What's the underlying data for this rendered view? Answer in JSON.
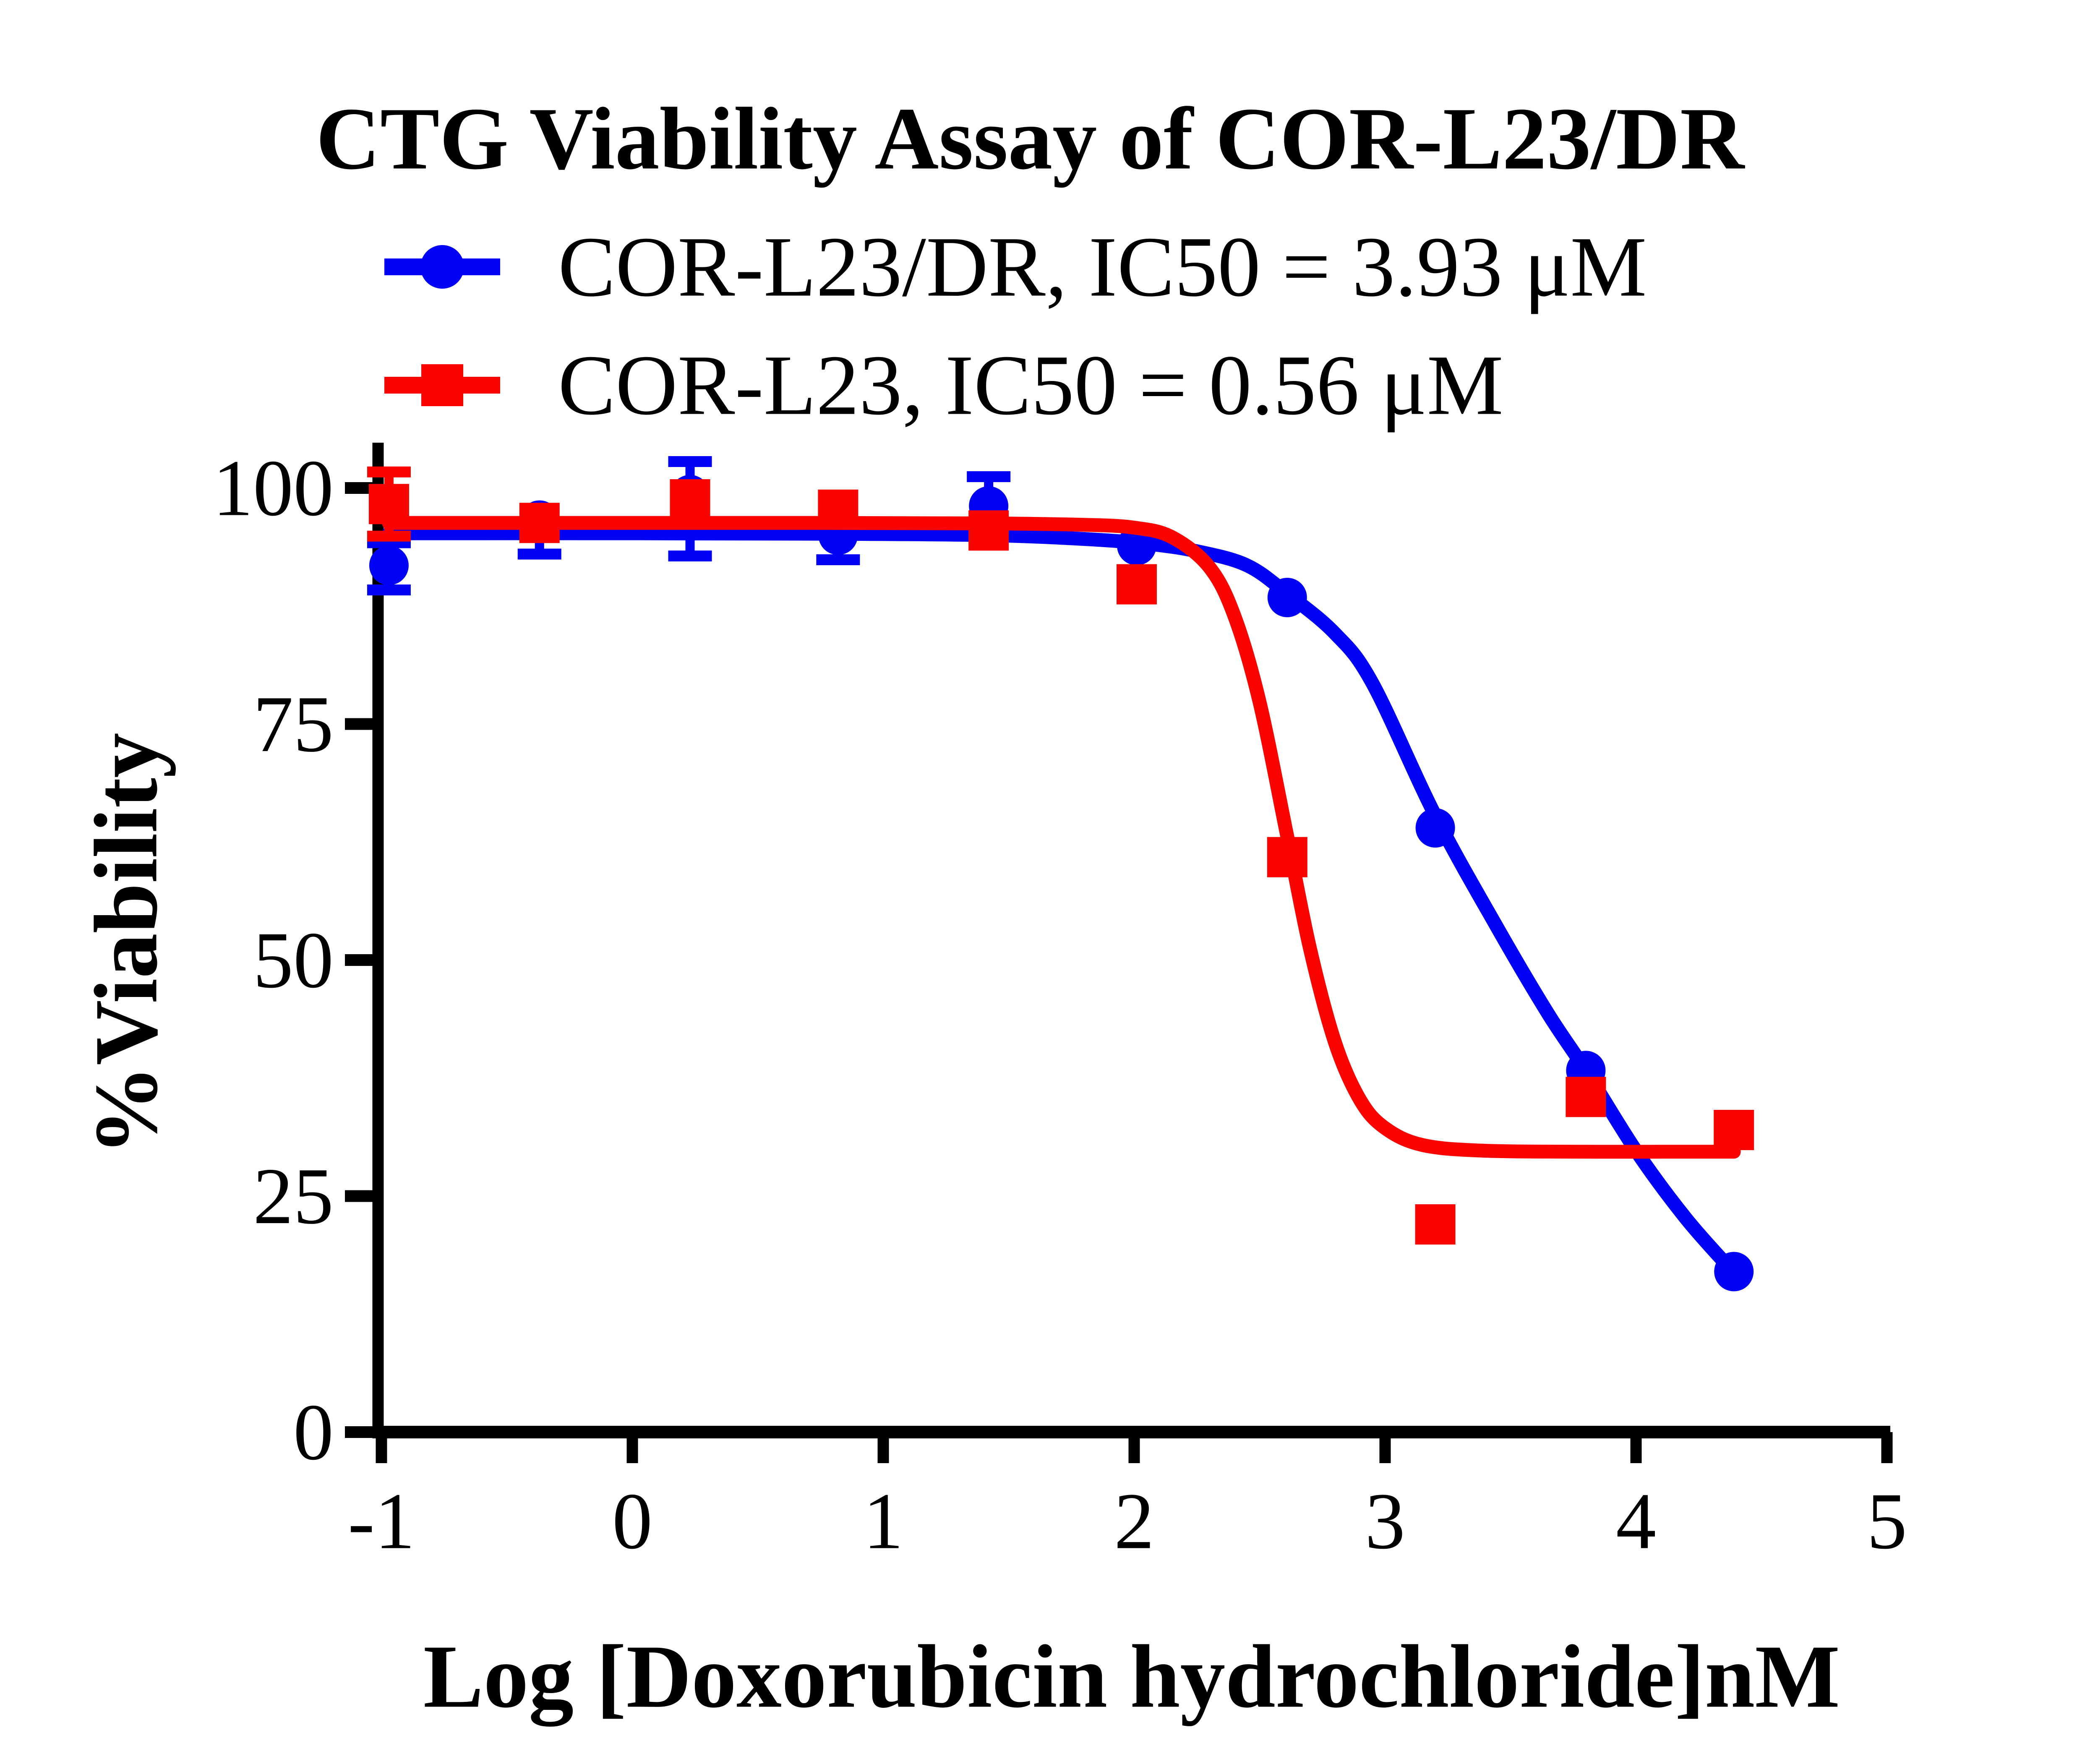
{
  "title": "CTG Viability Assay of COR-L23/DR",
  "colors": {
    "blue": "#0202f6",
    "red": "#f90400",
    "axis": "#000000",
    "background": "#ffffff"
  },
  "legend": [
    {
      "label": "COR-L23/DR, IC50 = 3.93 μM",
      "marker": "circle",
      "color_key": "blue"
    },
    {
      "label": "COR-L23, IC50 = 0.56 μM",
      "marker": "square",
      "color_key": "red"
    }
  ],
  "chart_data": {
    "type": "scatter",
    "subtype": "dose-response-curves-with-error-bars",
    "title": "CTG Viability Assay of COR-L23/DR",
    "xlabel": "Log [Doxorubicin hydrochloride]nM",
    "ylabel": "%Viability",
    "x_ticks": [
      -1,
      0,
      1,
      2,
      3,
      4,
      5
    ],
    "y_ticks": [
      0,
      25,
      50,
      75,
      100
    ],
    "xlim": [
      -1,
      5
    ],
    "ylim": [
      0,
      105
    ],
    "grid": false,
    "legend_position": "top-left",
    "series": [
      {
        "name": "COR-L23/DR",
        "ic50_text": "IC50 = 3.93 μM",
        "color_key": "blue",
        "marker": "circle",
        "x": [
          -0.97,
          -0.37,
          0.23,
          0.82,
          1.42,
          2.01,
          2.61,
          3.2,
          3.8,
          4.39
        ],
        "y": [
          91.8,
          96.6,
          99.3,
          95.0,
          98.1,
          93.9,
          88.4,
          64.0,
          38.3,
          17.0
        ],
        "err_lo": [
          89.2,
          93.0,
          92.8,
          92.4,
          null,
          null,
          null,
          null,
          null,
          null
        ],
        "err_hi": [
          94.2,
          null,
          102.8,
          null,
          101.2,
          null,
          null,
          null,
          null,
          null
        ],
        "fit_curve": [
          [
            -0.97,
            95.2
          ],
          [
            0,
            95.2
          ],
          [
            0.8,
            95.15
          ],
          [
            1.42,
            95.0
          ],
          [
            1.8,
            94.6
          ],
          [
            2.05,
            94.1
          ],
          [
            2.25,
            93.3
          ],
          [
            2.45,
            91.8
          ],
          [
            2.61,
            88.8
          ],
          [
            2.8,
            84.6
          ],
          [
            2.95,
            79.3
          ],
          [
            3.2,
            65.3
          ],
          [
            3.45,
            53.3
          ],
          [
            3.65,
            44.3
          ],
          [
            3.8,
            38.3
          ],
          [
            4.0,
            29.8
          ],
          [
            4.2,
            22.6
          ],
          [
            4.39,
            16.9
          ]
        ]
      },
      {
        "name": "COR-L23",
        "ic50_text": "IC50 = 0.56 μM",
        "color_key": "red",
        "marker": "square",
        "x": [
          -0.97,
          -0.37,
          0.23,
          0.82,
          1.42,
          2.01,
          2.61,
          3.2,
          3.8,
          4.39
        ],
        "y": [
          98.3,
          96.3,
          98.8,
          97.7,
          95.5,
          89.8,
          60.9,
          22.0,
          35.5,
          32.0
        ],
        "err_lo": [
          94.9,
          null,
          null,
          null,
          null,
          null,
          null,
          null,
          null,
          null
        ],
        "err_hi": [
          101.7,
          null,
          null,
          null,
          null,
          null,
          null,
          null,
          null,
          null
        ],
        "fit_curve": [
          [
            -0.97,
            96.3
          ],
          [
            0,
            96.3
          ],
          [
            0.8,
            96.3
          ],
          [
            1.42,
            96.25
          ],
          [
            1.8,
            96.1
          ],
          [
            2.0,
            95.8
          ],
          [
            2.15,
            94.8
          ],
          [
            2.3,
            91.6
          ],
          [
            2.4,
            86.4
          ],
          [
            2.5,
            77.3
          ],
          [
            2.61,
            63.1
          ],
          [
            2.7,
            51.3
          ],
          [
            2.8,
            41.3
          ],
          [
            2.9,
            35.2
          ],
          [
            3.0,
            32.2
          ],
          [
            3.15,
            30.4
          ],
          [
            3.4,
            29.8
          ],
          [
            3.8,
            29.7
          ],
          [
            4.1,
            29.7
          ],
          [
            4.39,
            29.7
          ]
        ]
      }
    ]
  }
}
